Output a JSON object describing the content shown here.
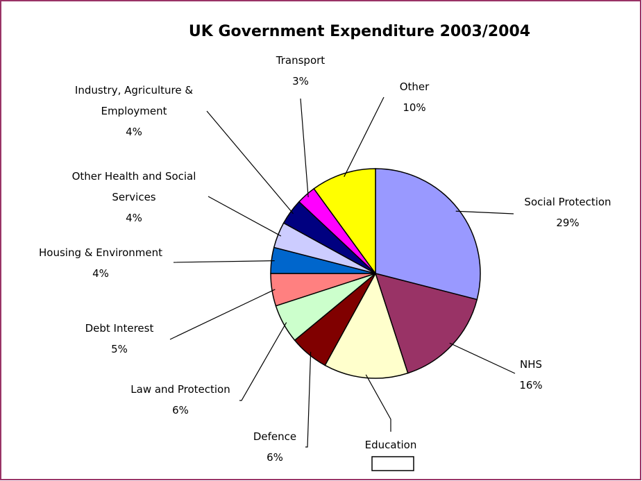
{
  "chart_data": {
    "type": "pie",
    "title": "UK Government Expenditure 2003/2004",
    "slices": [
      {
        "name": "Social Protection",
        "label_lines": [
          "Social Protection"
        ],
        "percent_label": "29%",
        "value": 29,
        "color": "#9999ff"
      },
      {
        "name": "NHS",
        "label_lines": [
          "NHS"
        ],
        "percent_label": "16%",
        "value": 16,
        "color": "#993366"
      },
      {
        "name": "Education",
        "label_lines": [
          "Education"
        ],
        "percent_label": "",
        "value": 13,
        "color": "#ffffcc"
      },
      {
        "name": "Defence",
        "label_lines": [
          "Defence"
        ],
        "percent_label": "6%",
        "value": 6,
        "color": "#800000"
      },
      {
        "name": "Law and Protection",
        "label_lines": [
          "Law and Protection"
        ],
        "percent_label": "6%",
        "value": 6,
        "color": "#ccffcc"
      },
      {
        "name": "Debt Interest",
        "label_lines": [
          "Debt Interest"
        ],
        "percent_label": "5%",
        "value": 5,
        "color": "#ff8080"
      },
      {
        "name": "Housing & Environment",
        "label_lines": [
          "Housing & Environment"
        ],
        "percent_label": "4%",
        "value": 4,
        "color": "#0066cc"
      },
      {
        "name": "Other Health and Social Services",
        "label_lines": [
          "Other Health and Social",
          "Services"
        ],
        "percent_label": "4%",
        "value": 4,
        "color": "#ccccff"
      },
      {
        "name": "Industry, Agriculture & Employment",
        "label_lines": [
          "Industry, Agriculture &",
          "Employment"
        ],
        "percent_label": "4%",
        "value": 4,
        "color": "#000080"
      },
      {
        "name": "Transport",
        "label_lines": [
          "Transport"
        ],
        "percent_label": "3%",
        "value": 3,
        "color": "#ff00ff"
      },
      {
        "name": "Other",
        "label_lines": [
          "Other"
        ],
        "percent_label": "10%",
        "value": 10,
        "color": "#ffff00"
      }
    ],
    "start_angle_deg": 0,
    "direction": "clockwise",
    "legend": "none",
    "frame_color": "#993366",
    "slice_border_color": "#000000"
  }
}
